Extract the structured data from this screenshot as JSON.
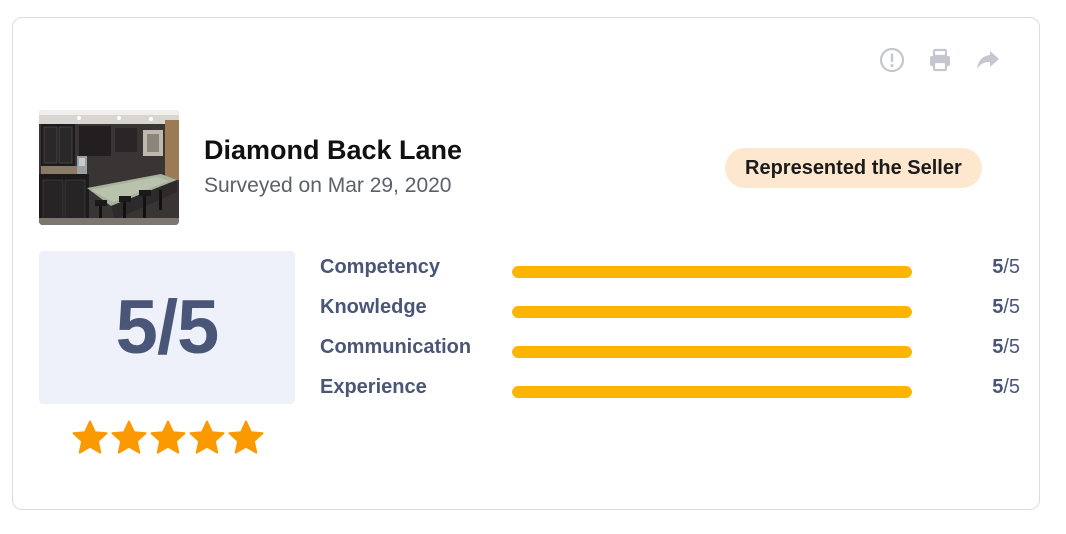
{
  "listing": {
    "title": "Diamond Back Lane",
    "surveyed": "Surveyed on Mar 29, 2020",
    "role_badge": "Represented the Seller"
  },
  "actions": [
    {
      "icon": "report-icon"
    },
    {
      "icon": "print-icon"
    },
    {
      "icon": "share-icon"
    }
  ],
  "overall": {
    "score_text": "5/5",
    "stars": 5,
    "max_stars": 5,
    "star_color": "#fb9a00"
  },
  "metrics": [
    {
      "label": "Competency",
      "score": "5",
      "max": "/5",
      "fraction": 1.0
    },
    {
      "label": "Knowledge",
      "score": "5",
      "max": "/5",
      "fraction": 1.0
    },
    {
      "label": "Communication",
      "score": "5",
      "max": "/5",
      "fraction": 1.0
    },
    {
      "label": "Experience",
      "score": "5",
      "max": "/5",
      "fraction": 1.0
    }
  ],
  "colors": {
    "bar_fill": "#fbb400",
    "badge_bg": "#fde7cf",
    "score_text": "#4a5677"
  }
}
